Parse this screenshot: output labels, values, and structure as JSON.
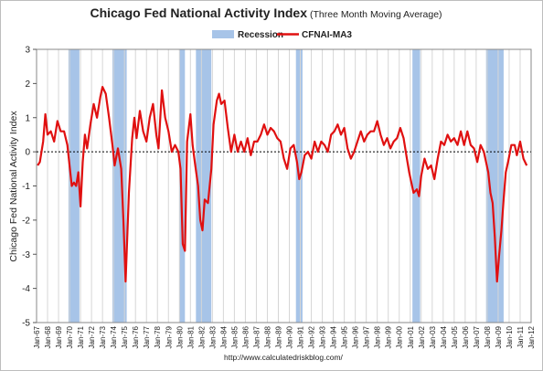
{
  "chart_data": {
    "type": "line",
    "title": "Chicago Fed National Activity Index",
    "subtitle": "(Three Month Moving Average)",
    "ylabel": "Chicago Fed National Activity Index",
    "xlabel": "",
    "ylim": [
      -5,
      3
    ],
    "yticks": [
      3,
      2,
      1,
      0,
      -1,
      -2,
      -3,
      -4,
      -5
    ],
    "xlim": [
      1967,
      2012
    ],
    "xtick_labels": [
      "Jan-67",
      "Jan-68",
      "Jan-69",
      "Jan-70",
      "Jan-71",
      "Jan-72",
      "Jan-73",
      "Jan-74",
      "Jan-75",
      "Jan-76",
      "Jan-77",
      "Jan-78",
      "Jan-79",
      "Jan-80",
      "Jan-81",
      "Jan-82",
      "Jan-83",
      "Jan-84",
      "Jan-85",
      "Jan-86",
      "Jan-87",
      "Jan-88",
      "Jan-89",
      "Jan-90",
      "Jan-91",
      "Jan-92",
      "Jan-93",
      "Jan-94",
      "Jan-95",
      "Jan-96",
      "Jan-97",
      "Jan-98",
      "Jan-99",
      "Jan-00",
      "Jan-01",
      "Jan-02",
      "Jan-03",
      "Jan-04",
      "Jan-05",
      "Jan-06",
      "Jan-07",
      "Jan-08",
      "Jan-09",
      "Jan-10",
      "Jan-11",
      "Jan-12"
    ],
    "grid": "vertical",
    "legend": "top-center",
    "recession_label": "Recession",
    "recession_color": "#a7c4e8",
    "recessions": [
      [
        1969.9,
        1970.9
      ],
      [
        1973.9,
        1975.2
      ],
      [
        1980.0,
        1980.5
      ],
      [
        1981.5,
        1982.9
      ],
      [
        1990.6,
        1991.2
      ],
      [
        2001.2,
        2001.9
      ],
      [
        2007.9,
        2009.5
      ]
    ],
    "series": [
      {
        "name": "CFNAI-MA3",
        "color": "#e01010",
        "points": [
          [
            1967.1,
            -0.4
          ],
          [
            1967.3,
            -0.3
          ],
          [
            1967.6,
            0.3
          ],
          [
            1967.8,
            1.1
          ],
          [
            1968.0,
            0.5
          ],
          [
            1968.3,
            0.6
          ],
          [
            1968.6,
            0.3
          ],
          [
            1968.9,
            0.9
          ],
          [
            1969.2,
            0.6
          ],
          [
            1969.5,
            0.6
          ],
          [
            1969.8,
            0.2
          ],
          [
            1970.0,
            -0.4
          ],
          [
            1970.2,
            -1.0
          ],
          [
            1970.4,
            -0.9
          ],
          [
            1970.6,
            -1.0
          ],
          [
            1970.8,
            -0.6
          ],
          [
            1971.0,
            -1.6
          ],
          [
            1971.2,
            -0.3
          ],
          [
            1971.4,
            0.5
          ],
          [
            1971.6,
            0.1
          ],
          [
            1971.9,
            0.8
          ],
          [
            1972.2,
            1.4
          ],
          [
            1972.5,
            1.0
          ],
          [
            1972.8,
            1.6
          ],
          [
            1973.0,
            1.9
          ],
          [
            1973.3,
            1.7
          ],
          [
            1973.6,
            1.0
          ],
          [
            1973.9,
            0.2
          ],
          [
            1974.1,
            -0.4
          ],
          [
            1974.4,
            0.1
          ],
          [
            1974.7,
            -0.5
          ],
          [
            1974.9,
            -2.0
          ],
          [
            1975.1,
            -3.8
          ],
          [
            1975.4,
            -1.2
          ],
          [
            1975.7,
            0.4
          ],
          [
            1975.9,
            1.0
          ],
          [
            1976.1,
            0.4
          ],
          [
            1976.4,
            1.2
          ],
          [
            1976.7,
            0.6
          ],
          [
            1977.0,
            0.3
          ],
          [
            1977.3,
            1.0
          ],
          [
            1977.6,
            1.4
          ],
          [
            1977.9,
            0.5
          ],
          [
            1978.1,
            0.1
          ],
          [
            1978.4,
            1.8
          ],
          [
            1978.7,
            1.0
          ],
          [
            1979.0,
            0.6
          ],
          [
            1979.3,
            0.0
          ],
          [
            1979.6,
            0.2
          ],
          [
            1979.9,
            0.0
          ],
          [
            1980.1,
            -0.5
          ],
          [
            1980.3,
            -2.7
          ],
          [
            1980.5,
            -2.9
          ],
          [
            1980.7,
            0.3
          ],
          [
            1981.0,
            1.1
          ],
          [
            1981.2,
            0.2
          ],
          [
            1981.4,
            -0.3
          ],
          [
            1981.7,
            -1.0
          ],
          [
            1981.9,
            -2.0
          ],
          [
            1982.1,
            -2.3
          ],
          [
            1982.3,
            -1.4
          ],
          [
            1982.6,
            -1.5
          ],
          [
            1982.9,
            -0.5
          ],
          [
            1983.1,
            0.8
          ],
          [
            1983.4,
            1.5
          ],
          [
            1983.6,
            1.7
          ],
          [
            1983.8,
            1.4
          ],
          [
            1984.1,
            1.5
          ],
          [
            1984.4,
            0.7
          ],
          [
            1984.7,
            0.0
          ],
          [
            1985.0,
            0.5
          ],
          [
            1985.3,
            0.0
          ],
          [
            1985.6,
            0.3
          ],
          [
            1985.9,
            0.0
          ],
          [
            1986.2,
            0.4
          ],
          [
            1986.5,
            -0.1
          ],
          [
            1986.8,
            0.3
          ],
          [
            1987.1,
            0.3
          ],
          [
            1987.4,
            0.5
          ],
          [
            1987.7,
            0.8
          ],
          [
            1988.0,
            0.5
          ],
          [
            1988.3,
            0.7
          ],
          [
            1988.6,
            0.6
          ],
          [
            1988.9,
            0.4
          ],
          [
            1989.2,
            0.3
          ],
          [
            1989.5,
            -0.2
          ],
          [
            1989.8,
            -0.5
          ],
          [
            1990.1,
            0.1
          ],
          [
            1990.4,
            0.2
          ],
          [
            1990.7,
            -0.3
          ],
          [
            1990.9,
            -0.8
          ],
          [
            1991.1,
            -0.6
          ],
          [
            1991.4,
            -0.1
          ],
          [
            1991.7,
            0.0
          ],
          [
            1992.0,
            -0.2
          ],
          [
            1992.3,
            0.3
          ],
          [
            1992.6,
            0.0
          ],
          [
            1992.9,
            0.3
          ],
          [
            1993.2,
            0.2
          ],
          [
            1993.5,
            0.0
          ],
          [
            1993.8,
            0.5
          ],
          [
            1994.1,
            0.6
          ],
          [
            1994.4,
            0.8
          ],
          [
            1994.7,
            0.5
          ],
          [
            1995.0,
            0.7
          ],
          [
            1995.3,
            0.1
          ],
          [
            1995.6,
            -0.2
          ],
          [
            1995.9,
            0.0
          ],
          [
            1996.2,
            0.3
          ],
          [
            1996.5,
            0.6
          ],
          [
            1996.8,
            0.3
          ],
          [
            1997.1,
            0.5
          ],
          [
            1997.4,
            0.6
          ],
          [
            1997.7,
            0.6
          ],
          [
            1998.0,
            0.9
          ],
          [
            1998.3,
            0.5
          ],
          [
            1998.6,
            0.2
          ],
          [
            1998.9,
            0.4
          ],
          [
            1999.2,
            0.1
          ],
          [
            1999.5,
            0.3
          ],
          [
            1999.8,
            0.4
          ],
          [
            2000.1,
            0.7
          ],
          [
            2000.4,
            0.4
          ],
          [
            2000.7,
            -0.2
          ],
          [
            2000.9,
            -0.6
          ],
          [
            2001.1,
            -0.9
          ],
          [
            2001.3,
            -1.2
          ],
          [
            2001.6,
            -1.1
          ],
          [
            2001.8,
            -1.3
          ],
          [
            2002.0,
            -0.7
          ],
          [
            2002.3,
            -0.2
          ],
          [
            2002.6,
            -0.5
          ],
          [
            2002.9,
            -0.4
          ],
          [
            2003.2,
            -0.8
          ],
          [
            2003.5,
            -0.2
          ],
          [
            2003.8,
            0.3
          ],
          [
            2004.1,
            0.2
          ],
          [
            2004.4,
            0.5
          ],
          [
            2004.7,
            0.3
          ],
          [
            2005.0,
            0.4
          ],
          [
            2005.3,
            0.2
          ],
          [
            2005.6,
            0.6
          ],
          [
            2005.9,
            0.2
          ],
          [
            2006.2,
            0.6
          ],
          [
            2006.5,
            0.2
          ],
          [
            2006.8,
            0.1
          ],
          [
            2007.1,
            -0.3
          ],
          [
            2007.4,
            0.2
          ],
          [
            2007.7,
            0.0
          ],
          [
            2007.9,
            -0.3
          ],
          [
            2008.1,
            -0.6
          ],
          [
            2008.3,
            -1.2
          ],
          [
            2008.5,
            -1.5
          ],
          [
            2008.7,
            -2.5
          ],
          [
            2008.9,
            -3.8
          ],
          [
            2009.1,
            -3.0
          ],
          [
            2009.3,
            -2.3
          ],
          [
            2009.5,
            -1.4
          ],
          [
            2009.7,
            -0.6
          ],
          [
            2009.9,
            -0.3
          ],
          [
            2010.2,
            0.2
          ],
          [
            2010.5,
            0.2
          ],
          [
            2010.7,
            -0.1
          ],
          [
            2011.0,
            0.3
          ],
          [
            2011.3,
            -0.2
          ],
          [
            2011.6,
            -0.4
          ]
        ]
      }
    ]
  },
  "footer": {
    "url": "http://www.calculatedriskblog.com/"
  }
}
